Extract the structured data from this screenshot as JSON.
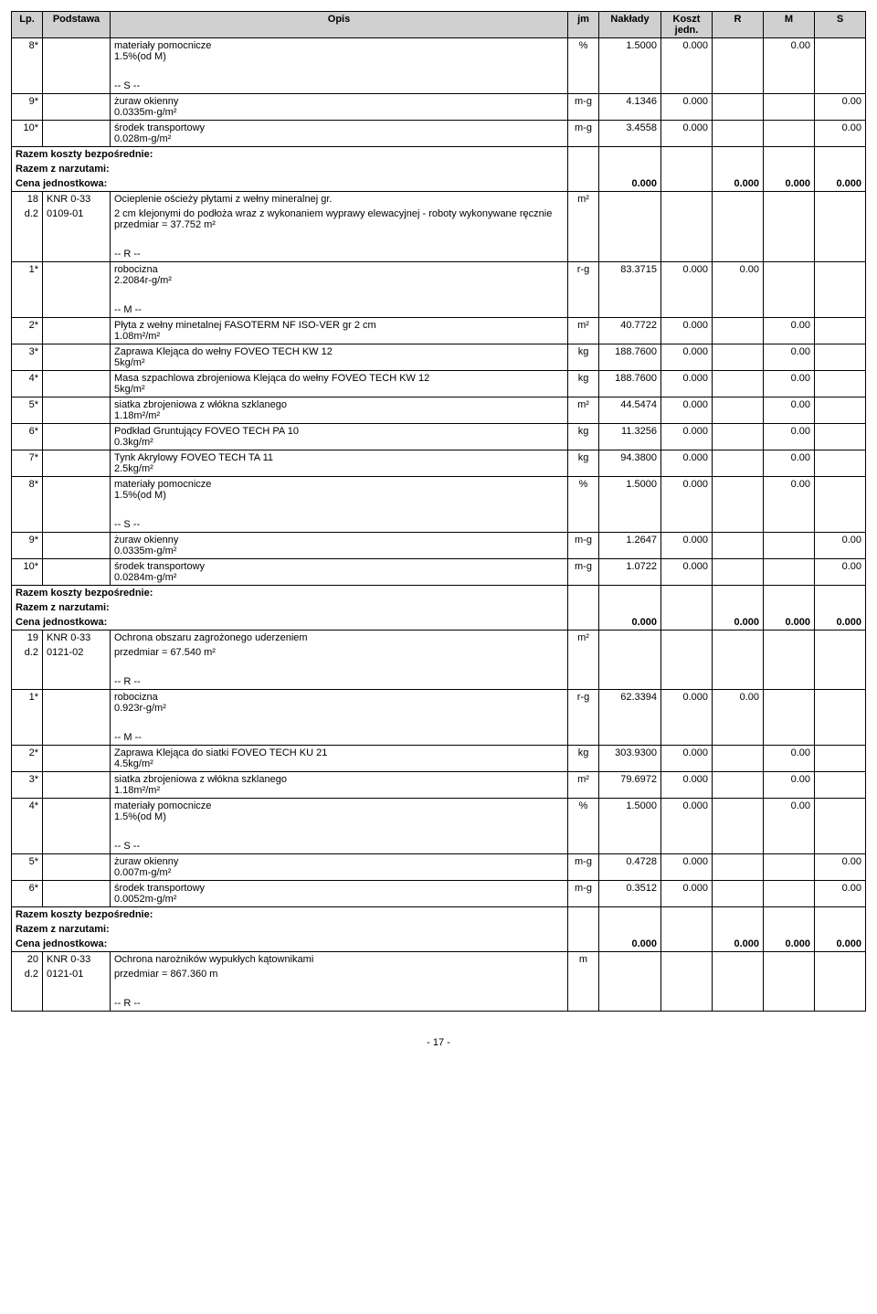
{
  "header": {
    "cols": [
      "Lp.",
      "Podstawa",
      "Opis",
      "jm",
      "Nakłady",
      "Koszt jedn.",
      "R",
      "M",
      "S"
    ]
  },
  "rows": [
    {
      "lp": "8*",
      "pod": "",
      "opis": "materiały pomocnicze\n1.5%(od M)",
      "jm": "%",
      "nak": "1.5000",
      "kj": "0.000",
      "r": "",
      "m": "0.00",
      "s": ""
    },
    {
      "type": "spacer"
    },
    {
      "type": "sep",
      "opis": "-- S --"
    },
    {
      "lp": "9*",
      "pod": "",
      "opis": "żuraw okienny\n0.0335m-g/m²",
      "jm": "m-g",
      "nak": "4.1346",
      "kj": "0.000",
      "r": "",
      "m": "",
      "s": "0.00"
    },
    {
      "lp": "10*",
      "pod": "",
      "opis": "środek transportowy\n0.028m-g/m²",
      "jm": "m-g",
      "nak": "3.4558",
      "kj": "0.000",
      "r": "",
      "m": "",
      "s": "0.00"
    },
    {
      "type": "razem",
      "l1": "Razem koszty bezpośrednie:",
      "l2": "Razem z narzutami:",
      "l3": "Cena jednostkowa:",
      "v": "0.000",
      "r": "0.000",
      "m": "0.000",
      "s": "0.000"
    },
    {
      "lp": "18",
      "pod": "KNR 0-33",
      "opis": "Ocieplenie ościeży płytami z wełny mineralnej gr.",
      "jm": "m²",
      "nak": "",
      "kj": "",
      "r": "",
      "m": "",
      "s": "",
      "prow": true
    },
    {
      "lp": "d.2",
      "pod": "0109-01",
      "opis": "2 cm klejonymi do podłoża wraz z wykonaniem wyprawy elewacyjnej - roboty wykonywane ręcznie\nprzedmiar  = 37.752 m²",
      "jm": "",
      "nak": "",
      "kj": "",
      "r": "",
      "m": "",
      "s": "",
      "cont": true
    },
    {
      "type": "spacer"
    },
    {
      "type": "sep",
      "opis": "-- R --"
    },
    {
      "lp": "1*",
      "pod": "",
      "opis": "robocizna\n2.2084r-g/m²",
      "jm": "r-g",
      "nak": "83.3715",
      "kj": "0.000",
      "r": "0.00",
      "m": "",
      "s": ""
    },
    {
      "type": "spacer"
    },
    {
      "type": "sep",
      "opis": "-- M --"
    },
    {
      "lp": "2*",
      "pod": "",
      "opis": "Płyta z wełny minetalnej FASOTERM NF ISO-VER gr 2 cm\n1.08m²/m²",
      "jm": "m²",
      "nak": "40.7722",
      "kj": "0.000",
      "r": "",
      "m": "0.00",
      "s": ""
    },
    {
      "lp": "3*",
      "pod": "",
      "opis": "Zaprawa Klejąca do wełny FOVEO TECH KW 12\n5kg/m²",
      "jm": "kg",
      "nak": "188.7600",
      "kj": "0.000",
      "r": "",
      "m": "0.00",
      "s": ""
    },
    {
      "lp": "4*",
      "pod": "",
      "opis": "Masa szpachlowa zbrojeniowa  Klejąca do wełny FOVEO TECH KW 12\n5kg/m²",
      "jm": "kg",
      "nak": "188.7600",
      "kj": "0.000",
      "r": "",
      "m": "0.00",
      "s": ""
    },
    {
      "lp": "5*",
      "pod": "",
      "opis": "siatka zbrojeniowa z włókna szklanego\n1.18m²/m²",
      "jm": "m²",
      "nak": "44.5474",
      "kj": "0.000",
      "r": "",
      "m": "0.00",
      "s": ""
    },
    {
      "lp": "6*",
      "pod": "",
      "opis": "Podkład Gruntujący FOVEO TECH PA 10\n0.3kg/m²",
      "jm": "kg",
      "nak": "11.3256",
      "kj": "0.000",
      "r": "",
      "m": "0.00",
      "s": ""
    },
    {
      "lp": "7*",
      "pod": "",
      "opis": "Tynk Akrylowy FOVEO TECH TA 11\n2.5kg/m²",
      "jm": "kg",
      "nak": "94.3800",
      "kj": "0.000",
      "r": "",
      "m": "0.00",
      "s": ""
    },
    {
      "lp": "8*",
      "pod": "",
      "opis": "materiały pomocnicze\n1.5%(od M)",
      "jm": "%",
      "nak": "1.5000",
      "kj": "0.000",
      "r": "",
      "m": "0.00",
      "s": ""
    },
    {
      "type": "spacer"
    },
    {
      "type": "sep",
      "opis": "-- S --"
    },
    {
      "lp": "9*",
      "pod": "",
      "opis": "żuraw okienny\n0.0335m-g/m²",
      "jm": "m-g",
      "nak": "1.2647",
      "kj": "0.000",
      "r": "",
      "m": "",
      "s": "0.00"
    },
    {
      "lp": "10*",
      "pod": "",
      "opis": "środek transportowy\n0.0284m-g/m²",
      "jm": "m-g",
      "nak": "1.0722",
      "kj": "0.000",
      "r": "",
      "m": "",
      "s": "0.00"
    },
    {
      "type": "razem",
      "l1": "Razem koszty bezpośrednie:",
      "l2": "Razem z narzutami:",
      "l3": "Cena jednostkowa:",
      "v": "0.000",
      "r": "0.000",
      "m": "0.000",
      "s": "0.000"
    },
    {
      "lp": "19",
      "pod": "KNR 0-33",
      "opis": "Ochrona obszaru zagrożonego uderzeniem",
      "jm": "m²",
      "nak": "",
      "kj": "",
      "r": "",
      "m": "",
      "s": "",
      "prow": true
    },
    {
      "lp": "d.2",
      "pod": "0121-02",
      "opis": "przedmiar  = 67.540 m²",
      "jm": "",
      "nak": "",
      "kj": "",
      "r": "",
      "m": "",
      "s": "",
      "cont": true
    },
    {
      "type": "spacer"
    },
    {
      "type": "sep",
      "opis": "-- R --"
    },
    {
      "lp": "1*",
      "pod": "",
      "opis": "robocizna\n0.923r-g/m²",
      "jm": "r-g",
      "nak": "62.3394",
      "kj": "0.000",
      "r": "0.00",
      "m": "",
      "s": ""
    },
    {
      "type": "spacer"
    },
    {
      "type": "sep",
      "opis": "-- M --"
    },
    {
      "lp": "2*",
      "pod": "",
      "opis": "Zaprawa Klejąca do siatki FOVEO TECH KU 21\n4.5kg/m²",
      "jm": "kg",
      "nak": "303.9300",
      "kj": "0.000",
      "r": "",
      "m": "0.00",
      "s": ""
    },
    {
      "lp": "3*",
      "pod": "",
      "opis": "siatka zbrojeniowa z włókna szklanego\n1.18m²/m²",
      "jm": "m²",
      "nak": "79.6972",
      "kj": "0.000",
      "r": "",
      "m": "0.00",
      "s": ""
    },
    {
      "lp": "4*",
      "pod": "",
      "opis": "materiały pomocnicze\n1.5%(od M)",
      "jm": "%",
      "nak": "1.5000",
      "kj": "0.000",
      "r": "",
      "m": "0.00",
      "s": ""
    },
    {
      "type": "spacer"
    },
    {
      "type": "sep",
      "opis": "-- S --"
    },
    {
      "lp": "5*",
      "pod": "",
      "opis": "żuraw okienny\n0.007m-g/m²",
      "jm": "m-g",
      "nak": "0.4728",
      "kj": "0.000",
      "r": "",
      "m": "",
      "s": "0.00"
    },
    {
      "lp": "6*",
      "pod": "",
      "opis": "środek transportowy\n0.0052m-g/m²",
      "jm": "m-g",
      "nak": "0.3512",
      "kj": "0.000",
      "r": "",
      "m": "",
      "s": "0.00"
    },
    {
      "type": "razem",
      "l1": "Razem koszty bezpośrednie:",
      "l2": "Razem z narzutami:",
      "l3": "Cena jednostkowa:",
      "v": "0.000",
      "r": "0.000",
      "m": "0.000",
      "s": "0.000"
    },
    {
      "lp": "20",
      "pod": "KNR 0-33",
      "opis": "Ochrona narożników wypukłych kątownikami",
      "jm": "m",
      "nak": "",
      "kj": "",
      "r": "",
      "m": "",
      "s": "",
      "prow": true
    },
    {
      "lp": "d.2",
      "pod": "0121-01",
      "opis": "przedmiar  = 867.360 m",
      "jm": "",
      "nak": "",
      "kj": "",
      "r": "",
      "m": "",
      "s": "",
      "cont": true
    },
    {
      "type": "spacer"
    },
    {
      "type": "sep",
      "opis": "-- R --"
    }
  ],
  "footer": "- 17 -"
}
